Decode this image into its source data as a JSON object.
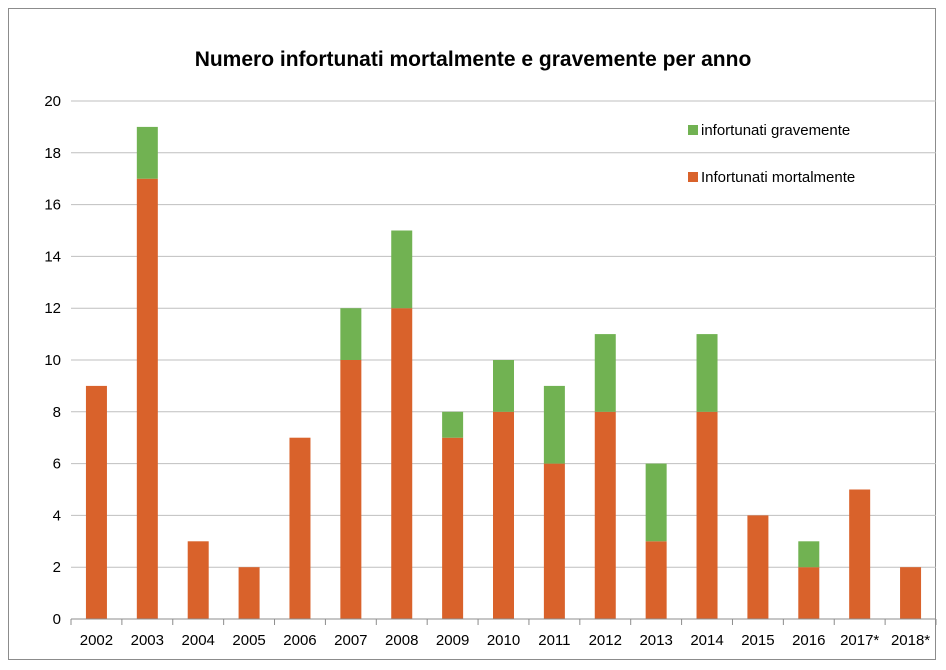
{
  "chart_data": {
    "type": "bar",
    "stacked": true,
    "title": "Numero infortunati mortalmente e gravemente per anno",
    "xlabel": "",
    "ylabel": "",
    "categories": [
      "2002",
      "2003",
      "2004",
      "2005",
      "2006",
      "2007",
      "2008",
      "2009",
      "2010",
      "2011",
      "2012",
      "2013",
      "2014",
      "2015",
      "2016",
      "2017*",
      "2018*"
    ],
    "series": [
      {
        "name": "Infortunati mortalmente",
        "color": "#d9622b",
        "values": [
          9,
          17,
          3,
          2,
          7,
          10,
          12,
          7,
          8,
          6,
          8,
          3,
          8,
          4,
          2,
          5,
          2
        ]
      },
      {
        "name": "infortunati gravemente",
        "color": "#71b252",
        "values": [
          0,
          2,
          0,
          0,
          0,
          2,
          3,
          1,
          2,
          3,
          3,
          3,
          3,
          0,
          1,
          0,
          0
        ]
      }
    ],
    "ylim": [
      0,
      20
    ],
    "yticks": [
      0,
      2,
      4,
      6,
      8,
      10,
      12,
      14,
      16,
      18,
      20
    ],
    "grid": true,
    "legend_position": "top-right",
    "legend_order": [
      "infortunati gravemente",
      "Infortunati mortalmente"
    ]
  }
}
